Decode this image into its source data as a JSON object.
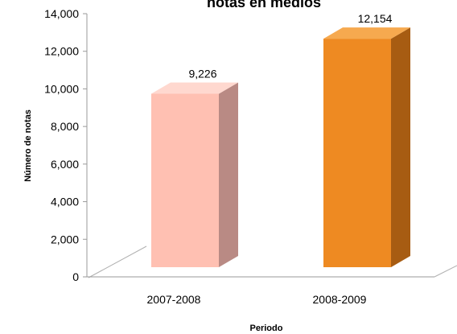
{
  "chart_data": {
    "type": "bar",
    "title": "notas en medios",
    "xlabel": "Periodo",
    "ylabel": "Número de notas",
    "categories": [
      "2007-2008",
      "2008-2009"
    ],
    "series": [
      {
        "values": [
          9226,
          12154
        ],
        "value_labels": [
          "9,226",
          "12,154"
        ]
      }
    ],
    "ylim": [
      0,
      14000
    ],
    "yticks": [
      0,
      2000,
      4000,
      6000,
      8000,
      10000,
      12000,
      14000
    ],
    "ytick_labels": [
      "0",
      "2,000",
      "4,000",
      "6,000",
      "8,000",
      "10,000",
      "12,000",
      "14,000"
    ],
    "grid": false,
    "legend": "none",
    "style": "3d",
    "bar_colors": [
      {
        "front": "#FFC0B2",
        "side": "#B98A84",
        "top": "#FFD8CF"
      },
      {
        "front": "#EE8A22",
        "side": "#A75C12",
        "top": "#F6A94F"
      }
    ]
  }
}
